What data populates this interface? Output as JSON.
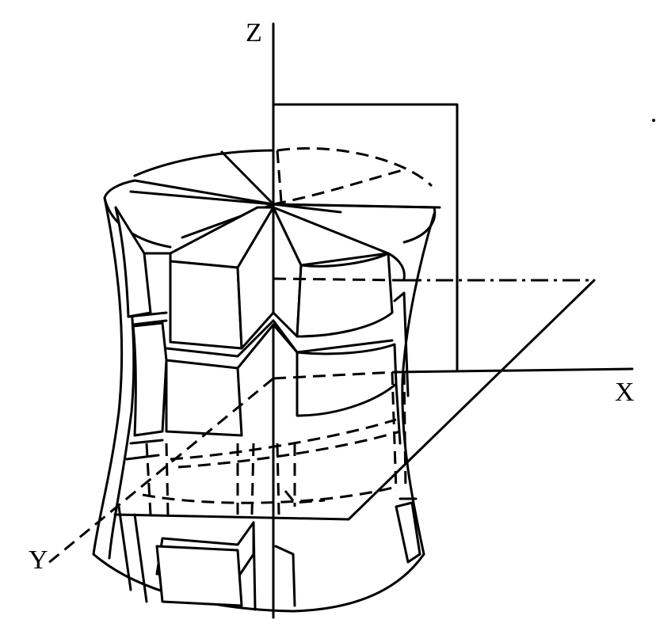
{
  "axes": {
    "z_label": "Z",
    "x_label": "X",
    "y_label": "Y"
  }
}
